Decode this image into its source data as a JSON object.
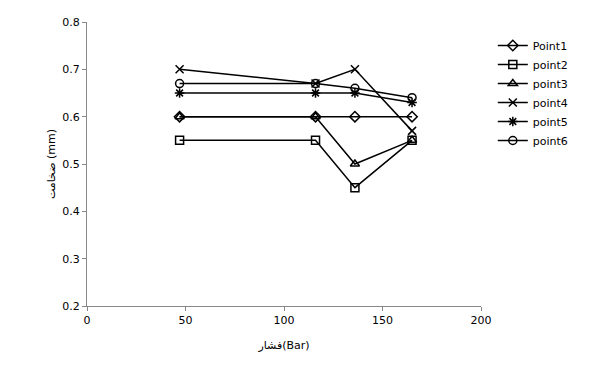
{
  "chart_data": {
    "type": "line",
    "x_label": "فشار(Bar)",
    "y_label": "ضخامت (mm)",
    "x": [
      47,
      116,
      136,
      165
    ],
    "series": [
      {
        "name": "Point1",
        "color": "#000000",
        "marker": "diamond",
        "values": [
          0.6,
          0.6,
          0.6,
          0.6
        ]
      },
      {
        "name": "point2",
        "color": "#000000",
        "marker": "square",
        "values": [
          0.55,
          0.55,
          0.45,
          0.55
        ]
      },
      {
        "name": "point3",
        "color": "#000000",
        "marker": "triangle",
        "values": [
          0.6,
          0.6,
          0.5,
          0.55
        ]
      },
      {
        "name": "point4",
        "color": "#000000",
        "marker": "x",
        "values": [
          0.7,
          0.67,
          0.7,
          0.57
        ]
      },
      {
        "name": "point5",
        "color": "#000000",
        "marker": "asterisk",
        "values": [
          0.65,
          0.65,
          0.65,
          0.63
        ]
      },
      {
        "name": "point6",
        "color": "#000000",
        "marker": "circle",
        "values": [
          0.67,
          0.67,
          0.66,
          0.64
        ]
      }
    ],
    "xlim": [
      0,
      200
    ],
    "xticks": [
      0,
      50,
      100,
      150,
      200
    ],
    "ylim": [
      0.2,
      0.8
    ],
    "yticks": [
      0.2,
      0.3,
      0.4,
      0.5,
      0.6,
      0.7,
      0.8
    ],
    "grid": false,
    "legend": "right"
  }
}
